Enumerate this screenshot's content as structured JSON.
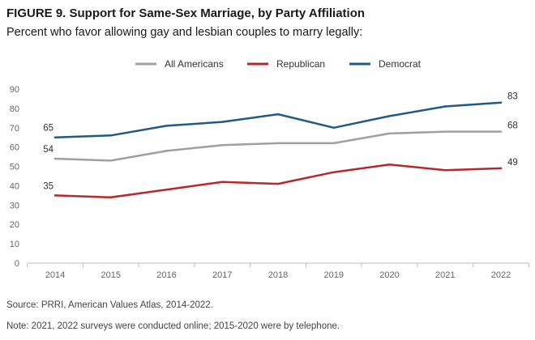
{
  "figure_title": "FIGURE 9.  Support for Same-Sex Marriage, by Party Affiliation",
  "figure_subtitle": "Percent who favor allowing gay and lesbian couples to marry legally:",
  "source_text": "Source: PRRI, American Values Atlas, 2014-2022.",
  "note_text": "Note: 2021, 2022 surveys were conducted online; 2015-2020 were by telephone.",
  "chart_data": {
    "type": "line",
    "title": "FIGURE 9.  Support for Same-Sex Marriage, by Party Affiliation",
    "subtitle": "Percent who favor allowing gay and lesbian couples to marry legally:",
    "xlabel": "",
    "ylabel": "",
    "categories": [
      "2014",
      "2015",
      "2016",
      "2017",
      "2018",
      "2019",
      "2020",
      "2021",
      "2022"
    ],
    "ylim": [
      0,
      90
    ],
    "yticks": [
      0,
      10,
      20,
      30,
      40,
      50,
      60,
      70,
      80,
      90
    ],
    "grid": false,
    "legend_position": "top-center",
    "series": [
      {
        "name": "All Americans",
        "color": "#a0a0a0",
        "values": [
          54,
          53,
          58,
          61,
          62,
          62,
          67,
          68,
          68
        ],
        "labels": [
          "54",
          "",
          "",
          "",
          "",
          "",
          "",
          "",
          "68"
        ]
      },
      {
        "name": "Republican",
        "color": "#b5292c",
        "values": [
          35,
          34,
          38,
          42,
          41,
          47,
          51,
          48,
          49
        ],
        "labels": [
          "35",
          "",
          "",
          "",
          "",
          "",
          "",
          "",
          "49"
        ]
      },
      {
        "name": "Democrat",
        "color": "#215a86",
        "values": [
          65,
          66,
          71,
          73,
          77,
          70,
          76,
          81,
          83
        ],
        "labels": [
          "65",
          "",
          "",
          "",
          "",
          "",
          "",
          "",
          "83"
        ]
      }
    ]
  }
}
